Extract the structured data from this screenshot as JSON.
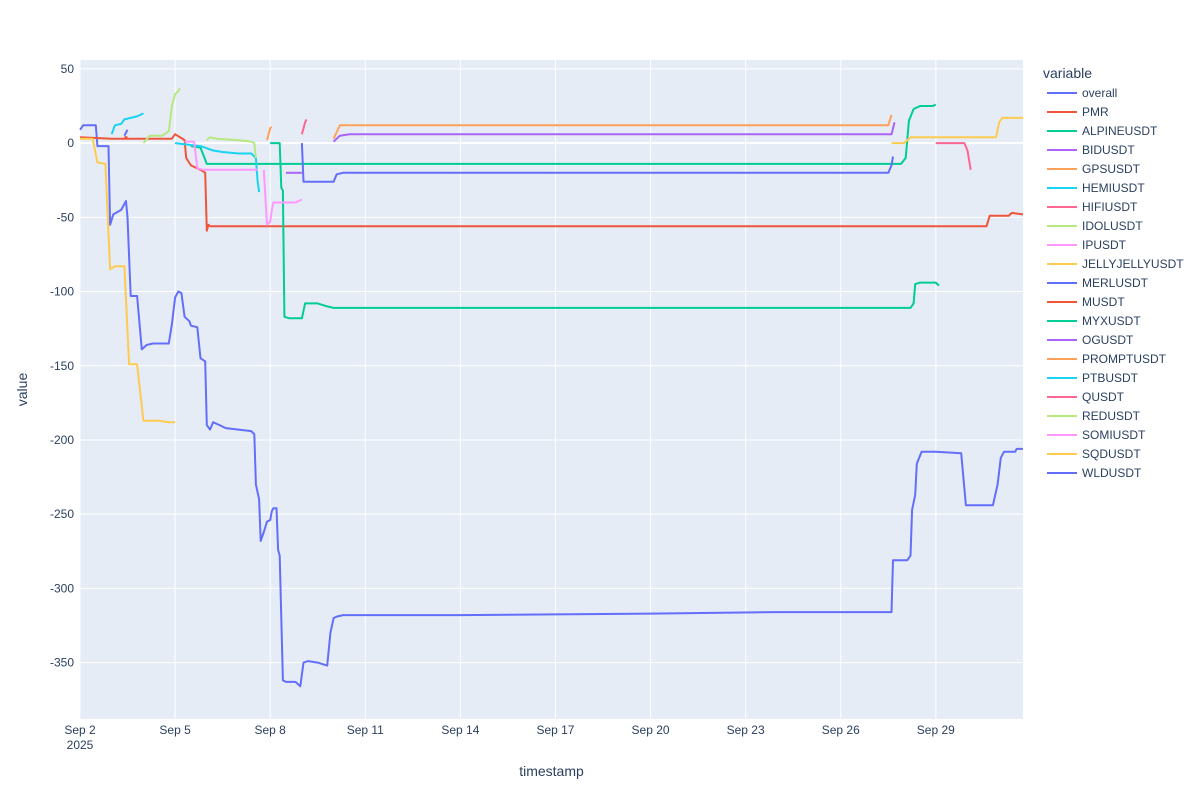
{
  "chart_data": {
    "type": "line",
    "xlabel": "timestamp",
    "ylabel": "value",
    "legend_title": "variable",
    "legend_position": "right",
    "grid": true,
    "xlim": [
      0,
      29.75
    ],
    "ylim": [
      -388,
      56
    ],
    "x_ticks": [
      {
        "value": 0,
        "label": "Sep 2",
        "sub": "2025"
      },
      {
        "value": 3,
        "label": "Sep 5"
      },
      {
        "value": 6,
        "label": "Sep 8"
      },
      {
        "value": 9,
        "label": "Sep 11"
      },
      {
        "value": 12,
        "label": "Sep 14"
      },
      {
        "value": 15,
        "label": "Sep 17"
      },
      {
        "value": 18,
        "label": "Sep 20"
      },
      {
        "value": 21,
        "label": "Sep 23"
      },
      {
        "value": 24,
        "label": "Sep 26"
      },
      {
        "value": 27,
        "label": "Sep 29"
      }
    ],
    "y_ticks": [
      50,
      0,
      -50,
      -100,
      -150,
      -200,
      -250,
      -300,
      -350
    ],
    "series": [
      {
        "name": "overall",
        "color": "#636efa",
        "points": [
          [
            0,
            9
          ],
          [
            0.1,
            12
          ],
          [
            0.5,
            12
          ],
          [
            0.55,
            -2
          ],
          [
            0.9,
            -2
          ],
          [
            0.95,
            -55
          ],
          [
            1.05,
            -48
          ],
          [
            1.3,
            -45
          ],
          [
            1.45,
            -39
          ],
          [
            1.5,
            -50
          ],
          [
            1.6,
            -103
          ],
          [
            1.8,
            -103
          ],
          [
            1.95,
            -139
          ],
          [
            2.1,
            -136
          ],
          [
            2.3,
            -135
          ],
          [
            2.8,
            -135
          ],
          [
            2.9,
            -122
          ],
          [
            3.0,
            -104
          ],
          [
            3.1,
            -100
          ],
          [
            3.2,
            -101
          ],
          [
            3.3,
            -117
          ],
          [
            3.45,
            -120
          ],
          [
            3.5,
            -123
          ],
          [
            3.7,
            -124
          ],
          [
            3.8,
            -145
          ],
          [
            3.95,
            -147
          ],
          [
            4.0,
            -190
          ],
          [
            4.1,
            -193
          ],
          [
            4.2,
            -188
          ],
          [
            4.4,
            -190
          ],
          [
            4.6,
            -192
          ],
          [
            5.0,
            -193
          ],
          [
            5.4,
            -194
          ],
          [
            5.5,
            -196
          ],
          [
            5.55,
            -230
          ],
          [
            5.65,
            -240
          ],
          [
            5.7,
            -268
          ],
          [
            5.8,
            -262
          ],
          [
            5.9,
            -255
          ],
          [
            6.0,
            -254
          ],
          [
            6.05,
            -248
          ],
          [
            6.1,
            -246
          ],
          [
            6.2,
            -246
          ],
          [
            6.25,
            -274
          ],
          [
            6.3,
            -278
          ],
          [
            6.4,
            -362
          ],
          [
            6.5,
            -363
          ],
          [
            6.8,
            -363
          ],
          [
            6.95,
            -366
          ],
          [
            7.05,
            -350
          ],
          [
            7.2,
            -349
          ],
          [
            7.5,
            -350
          ],
          [
            7.8,
            -352
          ],
          [
            7.9,
            -330
          ],
          [
            8.0,
            -320
          ],
          [
            8.1,
            -319
          ],
          [
            8.3,
            -318
          ],
          [
            12,
            -318
          ],
          [
            18,
            -317
          ],
          [
            22,
            -316
          ],
          [
            25.6,
            -316
          ],
          [
            25.65,
            -281
          ],
          [
            26.1,
            -281
          ],
          [
            26.2,
            -278
          ],
          [
            26.25,
            -247
          ],
          [
            26.35,
            -237
          ],
          [
            26.4,
            -216
          ],
          [
            26.55,
            -208
          ],
          [
            27.0,
            -208
          ],
          [
            27.8,
            -209
          ],
          [
            27.95,
            -244
          ],
          [
            28.8,
            -244
          ],
          [
            28.95,
            -230
          ],
          [
            29.05,
            -212
          ],
          [
            29.15,
            -208
          ],
          [
            29.5,
            -208
          ],
          [
            29.55,
            -206
          ],
          [
            29.75,
            -206
          ]
        ]
      },
      {
        "name": "PMR",
        "color": "#EF553B",
        "points": [
          [
            0,
            4
          ],
          [
            1,
            3
          ],
          [
            2,
            3
          ],
          [
            2.9,
            3
          ],
          [
            3.0,
            6
          ],
          [
            3.3,
            2
          ],
          [
            3.35,
            -10
          ],
          [
            3.5,
            -15
          ],
          [
            3.8,
            -18
          ],
          [
            3.95,
            -20
          ],
          [
            4.0,
            -59
          ],
          [
            4.05,
            -55
          ],
          [
            4.1,
            -56
          ],
          [
            10,
            -56
          ],
          [
            20,
            -56
          ],
          [
            28.6,
            -56
          ],
          [
            28.7,
            -49
          ],
          [
            29.3,
            -49
          ],
          [
            29.4,
            -47
          ],
          [
            29.75,
            -48
          ]
        ]
      },
      {
        "name": "ALPINEUSDT",
        "color": "#00cc96",
        "points": [
          [
            6.0,
            0
          ],
          [
            6.3,
            0
          ],
          [
            6.35,
            -30
          ],
          [
            6.4,
            -32
          ],
          [
            6.45,
            -117
          ],
          [
            6.6,
            -118
          ],
          [
            7.0,
            -118
          ],
          [
            7.1,
            -108
          ],
          [
            7.5,
            -108
          ],
          [
            7.8,
            -110
          ],
          [
            8.0,
            -111
          ],
          [
            18,
            -111
          ],
          [
            26.2,
            -111
          ],
          [
            26.3,
            -108
          ],
          [
            26.35,
            -95
          ],
          [
            26.5,
            -94
          ],
          [
            27.0,
            -94
          ],
          [
            27.1,
            -96
          ]
        ]
      },
      {
        "name": "BIDUSDT",
        "color": "#ab63fa",
        "points": [
          [
            8.0,
            1
          ],
          [
            8.2,
            5
          ],
          [
            8.5,
            6
          ],
          [
            15,
            6
          ],
          [
            20,
            6
          ],
          [
            25.6,
            6
          ],
          [
            25.7,
            14
          ]
        ]
      },
      {
        "name": "GPSUSDT",
        "color": "#FFA15A",
        "points": [
          [
            5.9,
            2
          ],
          [
            6.0,
            10
          ],
          [
            6.05,
            11
          ]
        ]
      },
      {
        "name": "HEMIUSDT",
        "color": "#19d3f3",
        "points": [
          [
            1.0,
            6
          ],
          [
            1.1,
            12
          ],
          [
            1.3,
            13
          ],
          [
            1.4,
            16
          ],
          [
            1.6,
            17
          ],
          [
            1.8,
            18
          ],
          [
            2.0,
            20
          ]
        ]
      },
      {
        "name": "HIFIUSDT",
        "color": "#FF6692",
        "points": [
          [
            7.0,
            6
          ],
          [
            7.1,
            14
          ],
          [
            7.15,
            16
          ]
        ]
      },
      {
        "name": "IDOLUSDT",
        "color": "#B6E880",
        "points": [
          [
            2.0,
            0
          ],
          [
            2.2,
            5
          ],
          [
            2.6,
            5
          ],
          [
            2.8,
            8
          ],
          [
            2.9,
            25
          ],
          [
            3.0,
            33
          ],
          [
            3.1,
            35
          ],
          [
            3.15,
            37
          ]
        ]
      },
      {
        "name": "IPUSDT",
        "color": "#FF97FF",
        "points": [
          [
            5.8,
            -18
          ],
          [
            5.9,
            -55
          ],
          [
            6.0,
            -53
          ],
          [
            6.05,
            -45
          ],
          [
            6.1,
            -40
          ],
          [
            6.5,
            -40
          ],
          [
            6.8,
            -40
          ],
          [
            7.0,
            -38
          ]
        ]
      },
      {
        "name": "JELLYJELLYUSDT",
        "color": "#FECB52",
        "points": [
          [
            0,
            3
          ],
          [
            0.4,
            3
          ],
          [
            0.55,
            -13
          ],
          [
            0.8,
            -14
          ],
          [
            0.95,
            -85
          ],
          [
            1.1,
            -83
          ],
          [
            1.4,
            -83
          ],
          [
            1.55,
            -149
          ],
          [
            1.8,
            -149
          ],
          [
            2.0,
            -187
          ],
          [
            2.5,
            -187
          ],
          [
            2.8,
            -188
          ],
          [
            3.0,
            -188
          ]
        ]
      },
      {
        "name": "MERLUSDT",
        "color": "#636efa",
        "points": [
          [
            1.4,
            5
          ],
          [
            1.5,
            9
          ]
        ]
      },
      {
        "name": "MUSDT",
        "color": "#EF553B",
        "points": [
          [
            1.4,
            4
          ],
          [
            1.5,
            4
          ]
        ]
      },
      {
        "name": "MYXUSDT",
        "color": "#00cc96",
        "points": [
          [
            3.5,
            -2
          ],
          [
            3.8,
            -3
          ],
          [
            4.0,
            -14
          ],
          [
            10,
            -14
          ],
          [
            20,
            -14
          ],
          [
            25.9,
            -14
          ],
          [
            26.05,
            -10
          ],
          [
            26.15,
            15
          ],
          [
            26.3,
            23
          ],
          [
            26.5,
            25
          ],
          [
            26.9,
            25
          ],
          [
            27.0,
            26
          ]
        ]
      },
      {
        "name": "OGUSDT",
        "color": "#ab63fa",
        "points": [
          [
            6.5,
            -20
          ],
          [
            7.0,
            -20
          ]
        ]
      },
      {
        "name": "PROMPTUSDT",
        "color": "#FFA15A",
        "points": [
          [
            8.0,
            3
          ],
          [
            8.2,
            12
          ],
          [
            10,
            12
          ],
          [
            20,
            12
          ],
          [
            25.5,
            12
          ],
          [
            25.6,
            19
          ]
        ]
      },
      {
        "name": "PTBUSDT",
        "color": "#19d3f3",
        "points": [
          [
            3.0,
            0
          ],
          [
            3.8,
            -2
          ],
          [
            4.2,
            -5
          ],
          [
            4.5,
            -6
          ],
          [
            5.0,
            -7
          ],
          [
            5.4,
            -7
          ],
          [
            5.55,
            -10
          ],
          [
            5.6,
            -25
          ],
          [
            5.65,
            -33
          ]
        ]
      },
      {
        "name": "QUSDT",
        "color": "#FF6692",
        "points": [
          [
            27.0,
            0
          ],
          [
            27.9,
            0
          ],
          [
            28.0,
            -5
          ],
          [
            28.1,
            -18
          ]
        ]
      },
      {
        "name": "REDUSDT",
        "color": "#B6E880",
        "points": [
          [
            4.0,
            2
          ],
          [
            4.1,
            4
          ],
          [
            4.3,
            3
          ],
          [
            5.0,
            2
          ],
          [
            5.4,
            1
          ],
          [
            5.5,
            0
          ],
          [
            5.55,
            -10
          ]
        ]
      },
      {
        "name": "SOMIUSDT",
        "color": "#FF97FF",
        "points": [
          [
            3.3,
            1
          ],
          [
            3.6,
            1
          ],
          [
            3.7,
            -17
          ],
          [
            3.9,
            -18
          ],
          [
            5.5,
            -18
          ],
          [
            5.6,
            -18
          ]
        ]
      },
      {
        "name": "SQDUSDT",
        "color": "#FECB52",
        "points": [
          [
            25.6,
            0
          ],
          [
            26.0,
            0
          ],
          [
            26.1,
            2
          ],
          [
            26.2,
            4
          ],
          [
            27.0,
            4
          ],
          [
            28.0,
            4
          ],
          [
            28.9,
            4
          ],
          [
            29.0,
            14
          ],
          [
            29.1,
            17
          ],
          [
            29.75,
            17
          ]
        ]
      },
      {
        "name": "WLDUSDT",
        "color": "#636efa",
        "points": [
          [
            7.0,
            0
          ],
          [
            7.05,
            -26
          ],
          [
            7.2,
            -26
          ],
          [
            8.0,
            -26
          ],
          [
            8.1,
            -21
          ],
          [
            8.3,
            -20
          ],
          [
            15,
            -20
          ],
          [
            20,
            -20
          ],
          [
            25.5,
            -20
          ],
          [
            25.6,
            -15
          ],
          [
            25.65,
            -9
          ]
        ]
      }
    ]
  }
}
